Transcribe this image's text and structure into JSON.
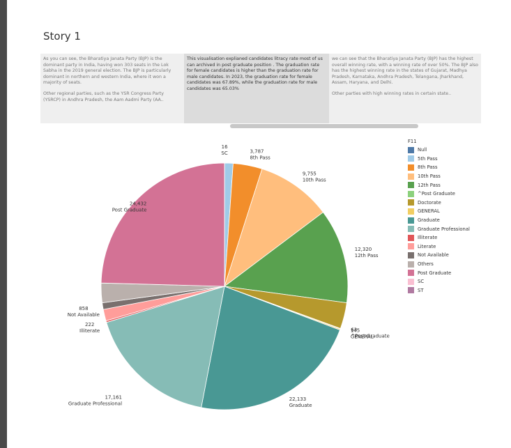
{
  "story": {
    "title": "Story 1",
    "points": [
      {
        "paragraphs": [
          "As you can see, the Bharatiya Janata Party (BJP) is the dominant party in India, having won 303 seats in the Lok Sabha in the 2019 general election. The BJP is particularly dominant in northern and western India, where it won a majority of seats.",
          "Other regional parties, such as the YSR Congress Party (YSRCP) in Andhra Pradesh, the Aam Aadmi Party (AA.."
        ]
      },
      {
        "paragraphs": [
          "This visualisation  explianed  candidates litracy rate most of us can  archived in post graduate position . The graduation rate for female candidates is higher than the graduation rate for male candidates.  In 2023, the graduation rate for female candidates was 67.89%, while the graduation rate for male candidates was 65.03%"
        ]
      },
      {
        "paragraphs": [
          "we can see that the Bharatiya Janata Party (BJP) has the highest overall winning rate, with a winning rate of over 50%. The BJP also has the highest winning rate in the states of Gujarat, Madhya Pradesh, Karnataka, Andhra Pradesh, Telangana, Jharkhand, Assam, Haryana, and Delhi.",
          "Other parties with high winning rates in certain state.."
        ]
      }
    ]
  },
  "legend": {
    "title": "F11",
    "items": [
      {
        "label": "Null",
        "color": "#4e79a7"
      },
      {
        "label": "5th Pass",
        "color": "#a0cbe8"
      },
      {
        "label": "8th Pass",
        "color": "#f28e2b"
      },
      {
        "label": "10th Pass",
        "color": "#ffbe7d"
      },
      {
        "label": "12th Pass",
        "color": "#59a14f"
      },
      {
        "label": "^Post Graduate",
        "color": "#8cd17d"
      },
      {
        "label": "Doctorate",
        "color": "#b6992d"
      },
      {
        "label": "GENERAL",
        "color": "#f1ce63"
      },
      {
        "label": "Graduate",
        "color": "#499894"
      },
      {
        "label": "Graduate Professional",
        "color": "#86bcb6"
      },
      {
        "label": "Illiterate",
        "color": "#e15759"
      },
      {
        "label": "Literate",
        "color": "#ff9d9a"
      },
      {
        "label": "Not Available",
        "color": "#79706e"
      },
      {
        "label": "Others",
        "color": "#bab0ac"
      },
      {
        "label": "Post Graduate",
        "color": "#d37295"
      },
      {
        "label": "SC",
        "color": "#fabfd2"
      },
      {
        "label": "ST",
        "color": "#b07aa1"
      }
    ]
  },
  "chart_data": {
    "type": "pie",
    "title": "",
    "slices": [
      {
        "category": "SC",
        "value": 16,
        "color": "#fabfd2",
        "label": "SC"
      },
      {
        "category": "5th Pass",
        "value": 1100,
        "color": "#a0cbe8",
        "label": ""
      },
      {
        "category": "8th Pass",
        "value": 3787,
        "color": "#f28e2b",
        "label": "8th Pass"
      },
      {
        "category": "10th Pass",
        "value": 9755,
        "color": "#ffbe7d",
        "label": "10th Pass"
      },
      {
        "category": "12th Pass",
        "value": 12320,
        "color": "#59a14f",
        "label": "12th Pass"
      },
      {
        "category": "Doctorate",
        "value": 3400,
        "color": "#b6992d",
        "label": ""
      },
      {
        "category": "^Post Graduate",
        "value": 63,
        "color": "#8cd17d",
        "label": "^Post Graduate"
      },
      {
        "category": "GENERAL",
        "value": 145,
        "color": "#f1ce63",
        "label": "GENERAL"
      },
      {
        "category": "Graduate",
        "value": 22133,
        "color": "#499894",
        "label": "Graduate"
      },
      {
        "category": "Graduate Professional",
        "value": 17161,
        "color": "#86bcb6",
        "label": "Graduate Professional"
      },
      {
        "category": "Illiterate",
        "value": 222,
        "color": "#e15759",
        "label": "Illiterate"
      },
      {
        "category": "Literate",
        "value": 1500,
        "color": "#ff9d9a",
        "label": ""
      },
      {
        "category": "Not Available",
        "value": 858,
        "color": "#79706e",
        "label": "Not Available"
      },
      {
        "category": "Others",
        "value": 2550,
        "color": "#bab0ac",
        "label": ""
      },
      {
        "category": "Post Graduate",
        "value": 24432,
        "color": "#d37295",
        "label": "Post Graduate"
      }
    ],
    "value_labels": [
      "16",
      "3,787",
      "9,755",
      "12,320",
      "63",
      "145",
      "22,133",
      "17,161",
      "222",
      "858",
      "24,432"
    ],
    "legend_position": "right"
  }
}
